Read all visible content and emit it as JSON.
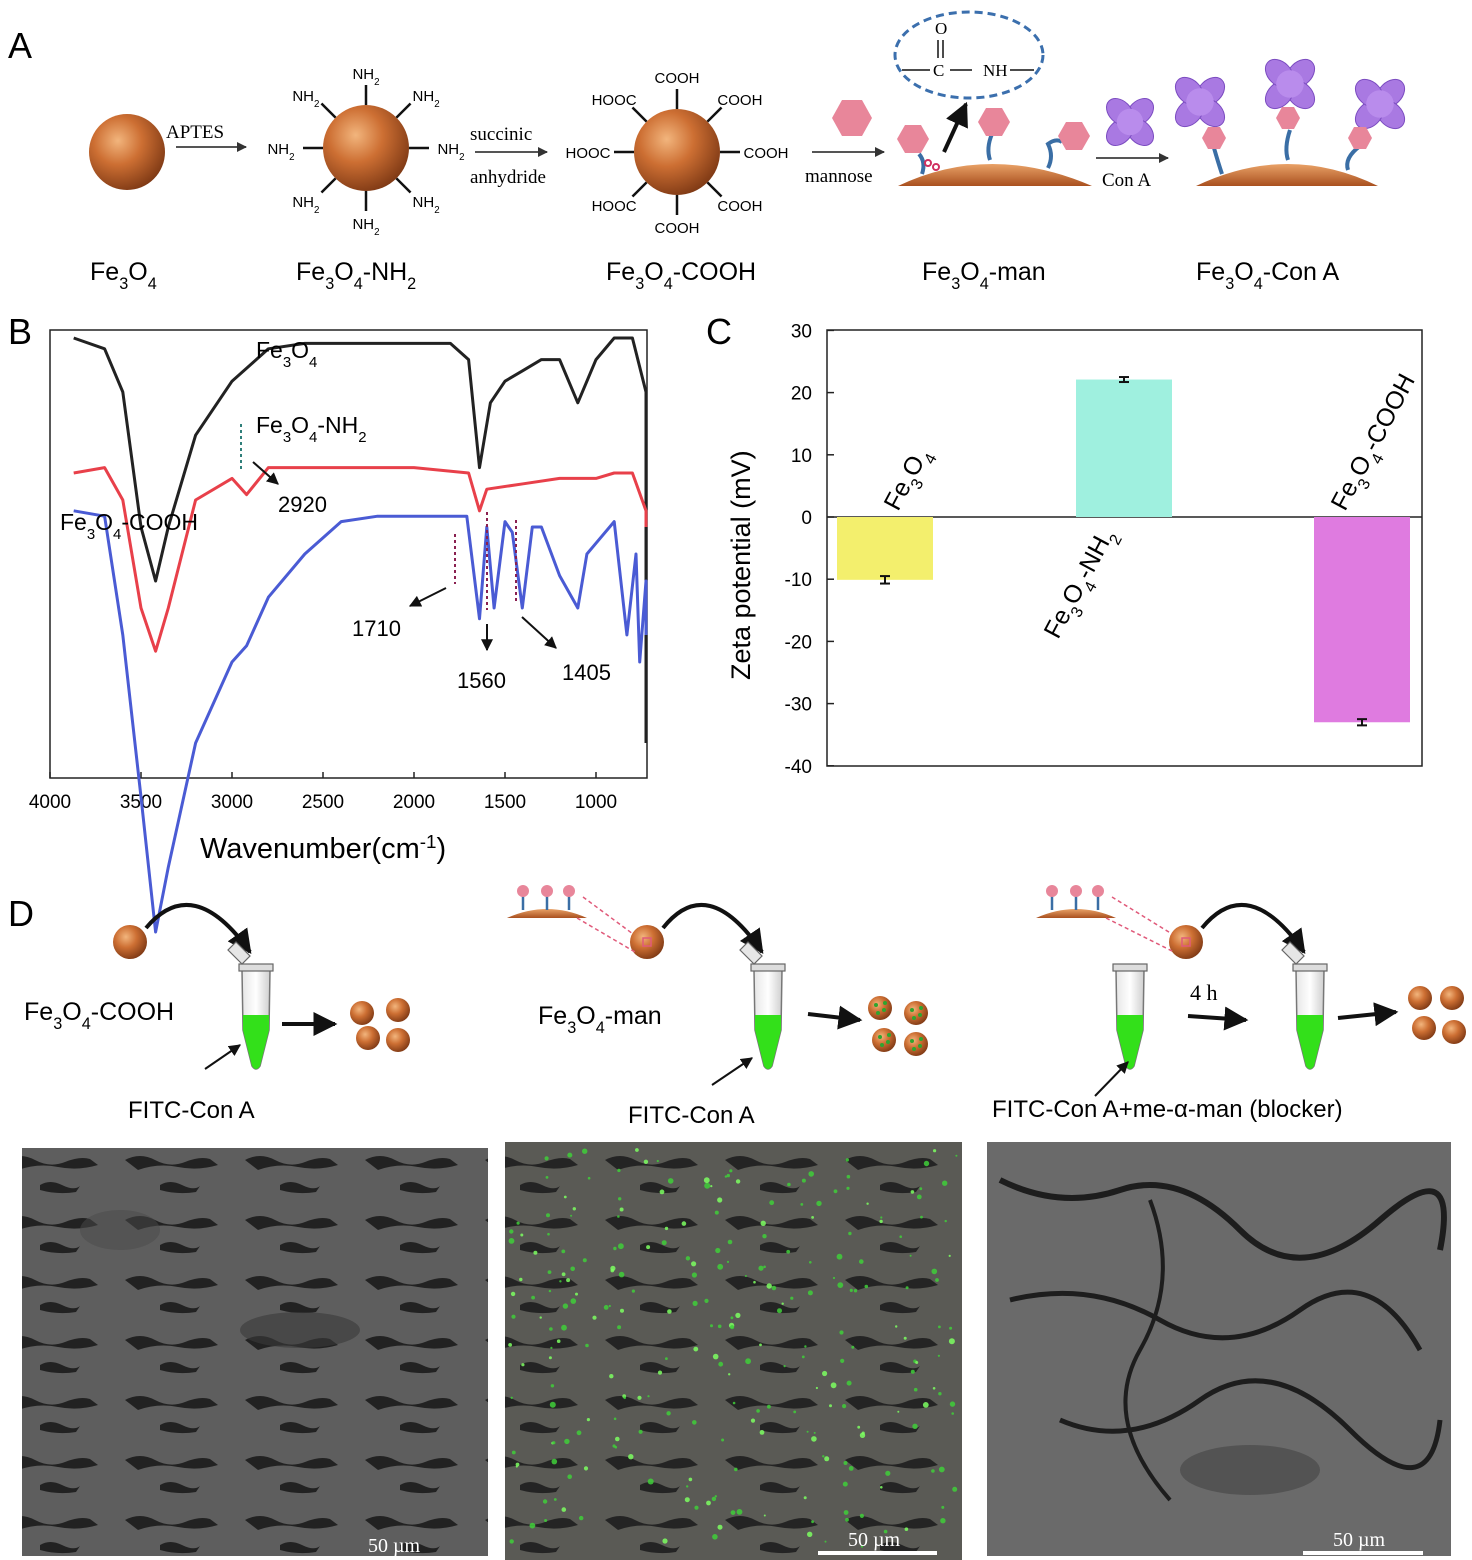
{
  "panels": {
    "a": {
      "letter": "A",
      "labels": [
        "Fe3O4",
        "Fe3O4-NH2",
        "Fe3O4-COOH",
        "Fe3O4-man",
        "Fe3O4-Con A"
      ],
      "arrows": {
        "aptes": "APTES",
        "succinic1": "succinic",
        "succinic2": "anhydride",
        "mannose": "mannose",
        "cona": "Con A"
      },
      "groups": {
        "nh2": "NH2",
        "cooh": "COOH",
        "amide_o": "O",
        "amide_c": "C",
        "amide_nh": "NH"
      }
    },
    "b": {
      "letter": "B",
      "series": [
        "Fe3O4",
        "Fe3O4-NH2",
        "Fe3O4-COOH"
      ],
      "peaks": [
        "2920",
        "1710",
        "1560",
        "1405"
      ],
      "xlabel": "Wavenumber(cm-1)",
      "xticks": [
        4000,
        3500,
        3000,
        2500,
        2000,
        1500,
        1000
      ]
    },
    "c": {
      "letter": "C",
      "ylabel": "Zeta potential (mV)",
      "yticks": [
        30,
        20,
        10,
        0,
        -10,
        -20,
        -30,
        -40
      ]
    },
    "d": {
      "letter": "D",
      "groups": [
        {
          "sample": "Fe3O4-COOH",
          "reagent": "FITC-Con A",
          "scalebar": "50 µm"
        },
        {
          "sample": "Fe3O4-man",
          "reagent": "FITC-Con A",
          "scalebar": "50 µm"
        },
        {
          "sample": "",
          "reagent": "FITC-Con A+me-α-man (blocker)",
          "scalebar": "50 µm",
          "time": "4 h"
        }
      ]
    }
  },
  "chart_data": [
    {
      "type": "line",
      "panel": "B",
      "title": "",
      "xlabel": "Wavenumber(cm-1)",
      "ylabel": "",
      "xlim": [
        4000,
        650
      ],
      "x_reversed": true,
      "legend": "inline labels",
      "series": [
        {
          "name": "Fe3O4",
          "color": "#222222",
          "x": [
            3870,
            3700,
            3600,
            3500,
            3420,
            3350,
            3200,
            3000,
            2800,
            2600,
            2400,
            2200,
            2000,
            1800,
            1700,
            1640,
            1580,
            1500,
            1400,
            1300,
            1200,
            1100,
            1000,
            900,
            800,
            720,
            680,
            650
          ],
          "y": [
            0.8,
            0.78,
            0.7,
            0.45,
            0.35,
            0.45,
            0.62,
            0.72,
            0.78,
            0.79,
            0.79,
            0.79,
            0.79,
            0.79,
            0.76,
            0.56,
            0.68,
            0.72,
            0.74,
            0.76,
            0.76,
            0.68,
            0.76,
            0.8,
            0.8,
            0.7,
            0.3,
            0.05
          ]
        },
        {
          "name": "Fe3O4-NH2",
          "color": "#e8404a",
          "x": [
            3870,
            3700,
            3600,
            3500,
            3420,
            3350,
            3200,
            3000,
            2920,
            2800,
            2600,
            2400,
            2000,
            1700,
            1640,
            1600,
            1400,
            1200,
            1000,
            900,
            800,
            720,
            680
          ],
          "y": [
            0.55,
            0.56,
            0.5,
            0.3,
            0.22,
            0.3,
            0.5,
            0.54,
            0.51,
            0.56,
            0.56,
            0.56,
            0.56,
            0.55,
            0.48,
            0.52,
            0.53,
            0.54,
            0.54,
            0.55,
            0.55,
            0.48,
            0.45
          ]
        },
        {
          "name": "Fe3O4-COOH",
          "color": "#4a5bd4",
          "x": [
            3870,
            3700,
            3600,
            3500,
            3420,
            3350,
            3200,
            3000,
            2920,
            2800,
            2600,
            2400,
            2200,
            2000,
            1800,
            1710,
            1640,
            1600,
            1560,
            1500,
            1460,
            1405,
            1350,
            1300,
            1200,
            1100,
            1050,
            1000,
            900,
            830,
            780,
            760,
            720,
            700
          ],
          "y": [
            0.48,
            0.47,
            0.25,
            -0.05,
            -0.3,
            -0.18,
            0.05,
            0.2,
            0.23,
            0.32,
            0.4,
            0.46,
            0.47,
            0.47,
            0.47,
            0.47,
            0.28,
            0.45,
            0.3,
            0.46,
            0.44,
            0.3,
            0.45,
            0.45,
            0.36,
            0.3,
            0.4,
            0.42,
            0.46,
            0.25,
            0.4,
            0.2,
            0.35,
            0.25
          ]
        }
      ],
      "annotations": [
        "2920",
        "1710",
        "1560",
        "1405"
      ]
    },
    {
      "type": "bar",
      "panel": "C",
      "title": "",
      "xlabel": "",
      "ylabel": "Zeta potential (mV)",
      "ylim": [
        -40,
        30
      ],
      "categories": [
        "Fe3O4",
        "Fe3O4-NH2",
        "Fe3O4-COOH"
      ],
      "values": [
        -10.1,
        22.1,
        -33.0
      ],
      "errors": [
        0.6,
        0.4,
        0.5
      ],
      "colors": [
        "#f3ef6d",
        "#9ff0df",
        "#df7be0"
      ]
    }
  ]
}
